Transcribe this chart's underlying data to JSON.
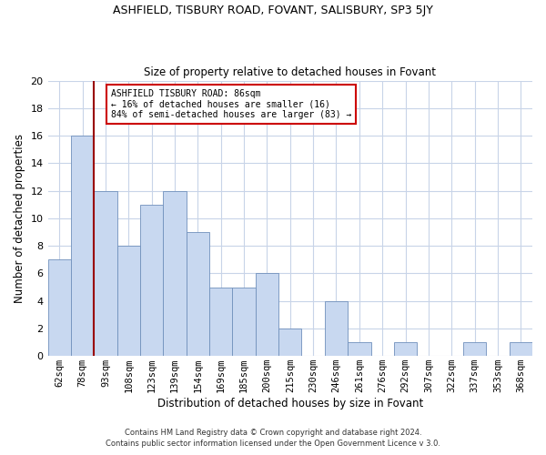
{
  "title": "ASHFIELD, TISBURY ROAD, FOVANT, SALISBURY, SP3 5JY",
  "subtitle": "Size of property relative to detached houses in Fovant",
  "xlabel": "Distribution of detached houses by size in Fovant",
  "ylabel": "Number of detached properties",
  "bar_labels": [
    "62sqm",
    "78sqm",
    "93sqm",
    "108sqm",
    "123sqm",
    "139sqm",
    "154sqm",
    "169sqm",
    "185sqm",
    "200sqm",
    "215sqm",
    "230sqm",
    "246sqm",
    "261sqm",
    "276sqm",
    "292sqm",
    "307sqm",
    "322sqm",
    "337sqm",
    "353sqm",
    "368sqm"
  ],
  "bar_values": [
    7,
    16,
    12,
    8,
    11,
    12,
    9,
    5,
    5,
    6,
    2,
    0,
    4,
    1,
    0,
    1,
    0,
    0,
    1,
    0,
    1
  ],
  "bar_color": "#c8d8f0",
  "bar_edge_color": "#7090bc",
  "grid_color": "#c8d4e8",
  "ylim": [
    0,
    20
  ],
  "yticks": [
    0,
    2,
    4,
    6,
    8,
    10,
    12,
    14,
    16,
    18,
    20
  ],
  "red_line_bar_index": 1,
  "annotation_box_text": "ASHFIELD TISBURY ROAD: 86sqm\n← 16% of detached houses are smaller (16)\n84% of semi-detached houses are larger (83) →",
  "footer1": "Contains HM Land Registry data © Crown copyright and database right 2024.",
  "footer2": "Contains public sector information licensed under the Open Government Licence v 3.0."
}
